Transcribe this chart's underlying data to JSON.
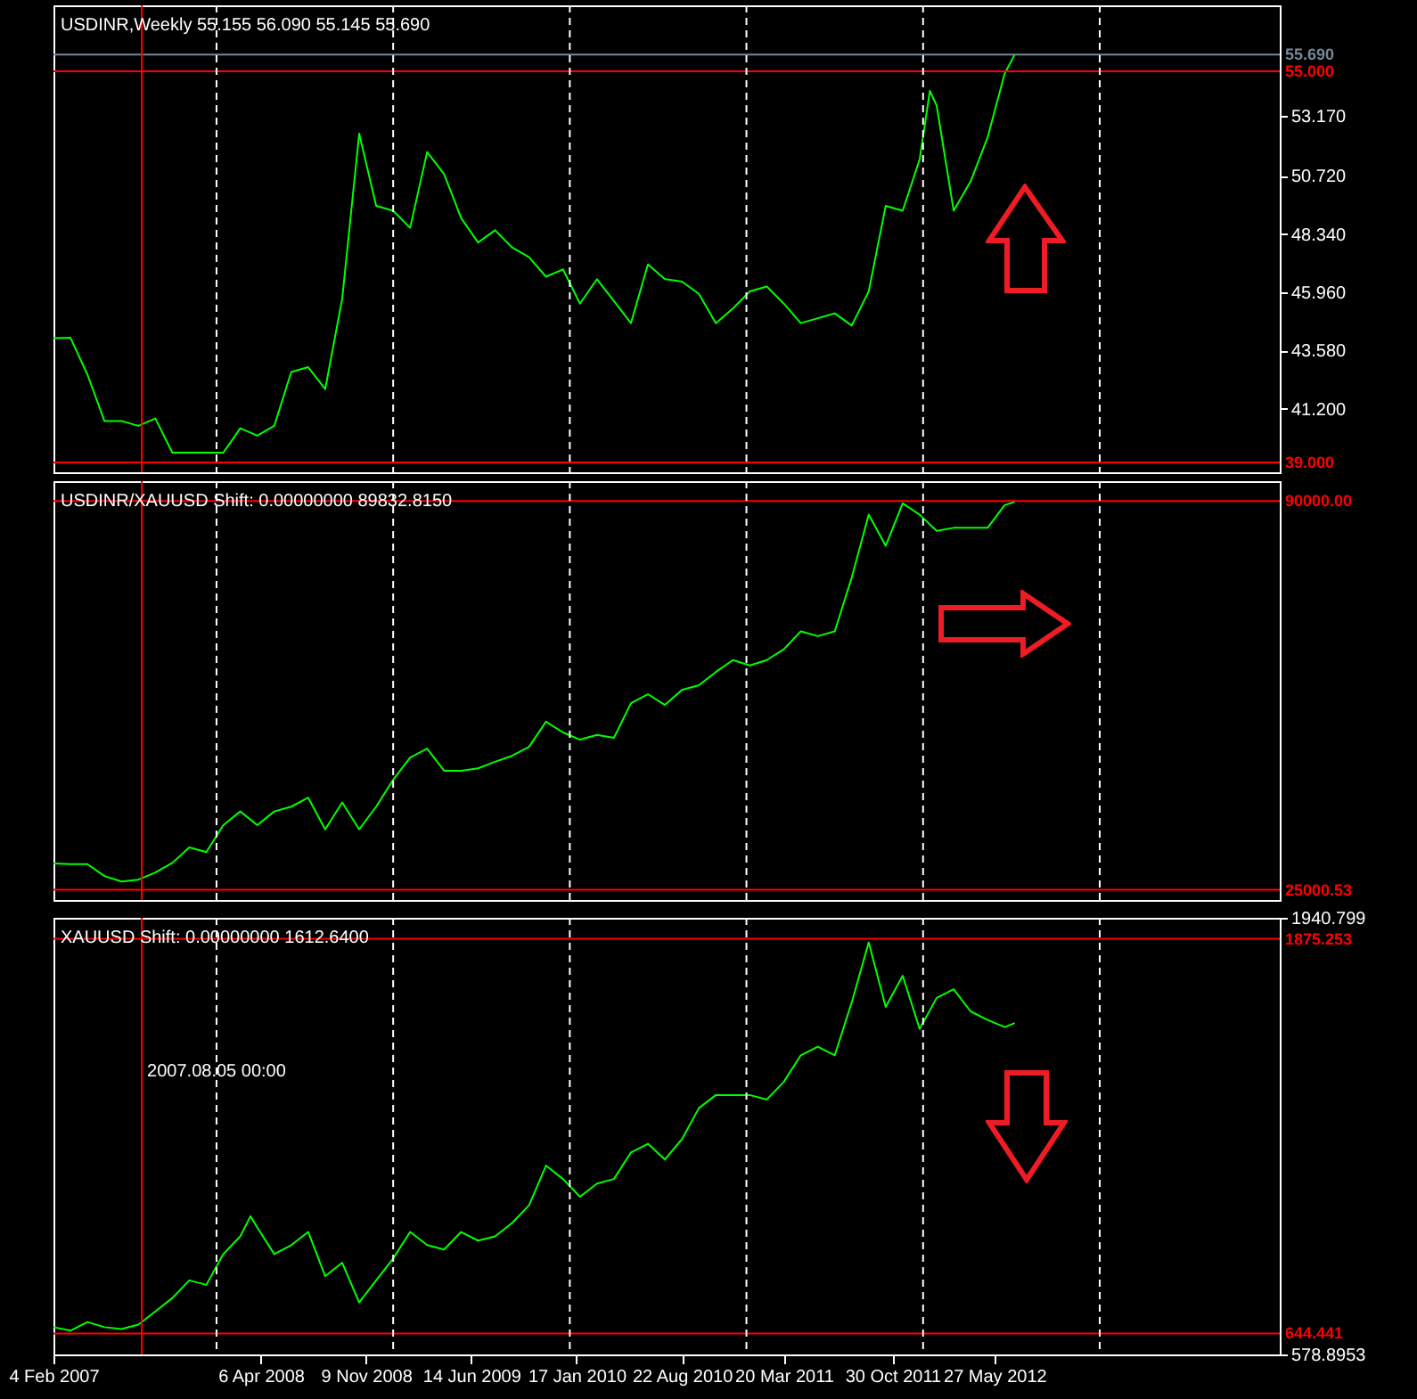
{
  "chart_data": [
    {
      "type": "line",
      "title": "USDINR,Weekly  55.155 56.090 55.145 55.690",
      "tick_labels": "y",
      "grid": false,
      "line_style": "solid",
      "xlim": [
        "2007-02-04",
        "2014-01-05"
      ],
      "ylim": [
        38.6,
        57.7
      ],
      "yticks": [
        {
          "value": 41.2,
          "label": "41.200"
        },
        {
          "value": 43.58,
          "label": "43.580"
        },
        {
          "value": 45.96,
          "label": "45.960"
        },
        {
          "value": 48.34,
          "label": "48.340"
        },
        {
          "value": 50.72,
          "label": "50.720"
        },
        {
          "value": 53.17,
          "label": "53.170"
        }
      ],
      "x": [
        "2007-02-04",
        "2007-03-11",
        "2007-04-15",
        "2007-05-20",
        "2007-06-24",
        "2007-07-29",
        "2007-09-02",
        "2007-10-07",
        "2007-11-11",
        "2007-12-16",
        "2008-01-20",
        "2008-02-24",
        "2008-03-30",
        "2008-05-04",
        "2008-06-08",
        "2008-07-13",
        "2008-08-17",
        "2008-09-21",
        "2008-10-26",
        "2008-11-30",
        "2009-01-04",
        "2009-02-08",
        "2009-03-15",
        "2009-04-19",
        "2009-05-24",
        "2009-06-28",
        "2009-08-02",
        "2009-09-06",
        "2009-10-11",
        "2009-11-15",
        "2009-12-20",
        "2010-01-24",
        "2010-02-28",
        "2010-04-04",
        "2010-05-09",
        "2010-06-13",
        "2010-07-18",
        "2010-08-22",
        "2010-09-26",
        "2010-10-31",
        "2010-12-05",
        "2011-01-09",
        "2011-02-13",
        "2011-03-20",
        "2011-04-24",
        "2011-05-29",
        "2011-07-03",
        "2011-08-07",
        "2011-09-11",
        "2011-10-16",
        "2011-11-20",
        "2011-12-25",
        "2012-01-15",
        "2012-01-29",
        "2012-03-04",
        "2012-04-08",
        "2012-05-13",
        "2012-06-17",
        "2012-07-08"
      ],
      "series": [
        {
          "color": "#00ff00",
          "values": [
            44.09,
            44.1,
            42.6,
            40.7,
            40.7,
            40.5,
            40.8,
            39.4,
            39.4,
            39.4,
            39.4,
            40.4,
            40.1,
            40.5,
            42.7,
            42.9,
            42.0,
            45.7,
            52.45,
            49.5,
            49.3,
            48.6,
            51.7,
            50.8,
            49.0,
            48.0,
            48.5,
            47.8,
            47.4,
            46.6,
            46.9,
            45.5,
            46.5,
            45.6,
            44.7,
            47.1,
            46.5,
            46.4,
            45.9,
            44.7,
            45.3,
            46.0,
            46.2,
            45.5,
            44.7,
            44.9,
            45.1,
            44.6,
            46.0,
            49.5,
            49.3,
            51.4,
            54.2,
            53.6,
            49.3,
            50.5,
            52.3,
            54.9,
            55.69
          ]
        }
      ],
      "ref_lines": [
        {
          "axis": "y",
          "value": 55.69,
          "label": "55.690",
          "color": "#778899"
        },
        {
          "axis": "y",
          "value": 55.0,
          "label": "55.000",
          "color": "#ff0000"
        },
        {
          "axis": "y",
          "value": 39.0,
          "label": "39.000",
          "color": "#ff0000"
        },
        {
          "axis": "x",
          "value": "2007-08-05",
          "color": "#ff0000"
        },
        {
          "axis": "x",
          "value": "2008-01-06",
          "color": "#ffffff",
          "line_style": "dashed"
        },
        {
          "axis": "x",
          "value": "2009-01-04",
          "color": "#ffffff",
          "line_style": "dashed"
        },
        {
          "axis": "x",
          "value": "2010-01-03",
          "color": "#ffffff",
          "line_style": "dashed"
        },
        {
          "axis": "x",
          "value": "2011-01-02",
          "color": "#ffffff",
          "line_style": "dashed"
        },
        {
          "axis": "x",
          "value": "2012-01-01",
          "color": "#ffffff",
          "line_style": "dashed"
        },
        {
          "axis": "x",
          "value": "2012-12-30",
          "color": "#ffffff",
          "line_style": "dashed"
        }
      ]
    },
    {
      "type": "line",
      "title": "USDINR/XAUUSD Shift: 0.00000000 89832.8150",
      "tick_labels": "y",
      "grid": false,
      "line_style": "solid",
      "xlim": [
        "2007-02-04",
        "2014-01-05"
      ],
      "ylim": [
        23300,
        93300
      ],
      "x": [
        "2007-02-04",
        "2007-03-11",
        "2007-04-15",
        "2007-05-20",
        "2007-06-24",
        "2007-07-29",
        "2007-09-02",
        "2007-10-07",
        "2007-11-11",
        "2007-12-16",
        "2008-01-20",
        "2008-02-24",
        "2008-03-30",
        "2008-05-04",
        "2008-06-08",
        "2008-07-13",
        "2008-08-17",
        "2008-09-21",
        "2008-10-26",
        "2008-11-30",
        "2009-01-04",
        "2009-02-08",
        "2009-03-15",
        "2009-04-19",
        "2009-05-24",
        "2009-06-28",
        "2009-08-02",
        "2009-09-06",
        "2009-10-11",
        "2009-11-15",
        "2009-12-20",
        "2010-01-24",
        "2010-02-28",
        "2010-04-04",
        "2010-05-09",
        "2010-06-13",
        "2010-07-18",
        "2010-08-22",
        "2010-09-26",
        "2010-10-31",
        "2010-12-05",
        "2011-01-09",
        "2011-02-13",
        "2011-03-20",
        "2011-04-24",
        "2011-05-29",
        "2011-07-03",
        "2011-08-07",
        "2011-09-11",
        "2011-10-16",
        "2011-11-20",
        "2011-12-25",
        "2012-01-29",
        "2012-03-04",
        "2012-04-08",
        "2012-05-13",
        "2012-06-17",
        "2012-07-08"
      ],
      "series": [
        {
          "color": "#00ff00",
          "values": [
            29400,
            29300,
            29300,
            27300,
            26400,
            26700,
            27900,
            29500,
            32100,
            31300,
            35800,
            38100,
            35800,
            38100,
            38900,
            40400,
            35100,
            39600,
            35100,
            38900,
            43400,
            47100,
            48600,
            44900,
            44900,
            45300,
            46400,
            47400,
            48900,
            53100,
            51300,
            50100,
            50900,
            50400,
            56200,
            57700,
            55900,
            58400,
            59200,
            61400,
            63400,
            62500,
            63400,
            65200,
            68200,
            67400,
            68200,
            77200,
            87700,
            82500,
            89600,
            87700,
            85000,
            85500,
            85500,
            85500,
            89300,
            89833
          ]
        }
      ],
      "ref_lines": [
        {
          "axis": "y",
          "value": 90000,
          "label": "90000.00",
          "color": "#ff0000"
        },
        {
          "axis": "y",
          "value": 25000.53,
          "label": "25000.53",
          "color": "#ff0000"
        },
        {
          "axis": "x",
          "value": "2007-08-05",
          "color": "#ff0000"
        },
        {
          "axis": "x",
          "value": "2008-01-06",
          "color": "#ffffff",
          "line_style": "dashed"
        },
        {
          "axis": "x",
          "value": "2009-01-04",
          "color": "#ffffff",
          "line_style": "dashed"
        },
        {
          "axis": "x",
          "value": "2010-01-03",
          "color": "#ffffff",
          "line_style": "dashed"
        },
        {
          "axis": "x",
          "value": "2011-01-02",
          "color": "#ffffff",
          "line_style": "dashed"
        },
        {
          "axis": "x",
          "value": "2012-01-01",
          "color": "#ffffff",
          "line_style": "dashed"
        },
        {
          "axis": "x",
          "value": "2012-12-30",
          "color": "#ffffff",
          "line_style": "dashed"
        }
      ]
    },
    {
      "type": "line",
      "title": "XAUUSD Shift: 0.00000000 1612.6400",
      "grid": false,
      "line_style": "solid",
      "xlim": [
        "2007-02-04",
        "2014-01-05"
      ],
      "ylim": [
        578.8953,
        1940.799
      ],
      "xticks": [
        {
          "value": "2007-02-04",
          "label": "4 Feb 2007"
        },
        {
          "value": "2008-04-06",
          "label": "6 Apr 2008"
        },
        {
          "value": "2008-11-09",
          "label": "9 Nov 2008"
        },
        {
          "value": "2009-06-14",
          "label": "14 Jun 2009"
        },
        {
          "value": "2010-01-17",
          "label": "17 Jan 2010"
        },
        {
          "value": "2010-08-22",
          "label": "22 Aug 2010"
        },
        {
          "value": "2011-03-20",
          "label": "20 Mar 2011"
        },
        {
          "value": "2011-10-30",
          "label": "30 Oct 2011"
        },
        {
          "value": "2012-05-27",
          "label": "27 May 2012"
        }
      ],
      "yticks": [
        {
          "value": 578.8953,
          "label": "578.8953"
        },
        {
          "value": 1940.799,
          "label": "1940.799"
        }
      ],
      "x": [
        "2007-02-04",
        "2007-03-11",
        "2007-04-15",
        "2007-05-20",
        "2007-06-24",
        "2007-07-29",
        "2007-09-02",
        "2007-10-07",
        "2007-11-11",
        "2007-12-16",
        "2008-01-20",
        "2008-02-24",
        "2008-03-16",
        "2008-03-30",
        "2008-05-04",
        "2008-06-08",
        "2008-07-13",
        "2008-08-17",
        "2008-09-21",
        "2008-10-26",
        "2008-11-30",
        "2009-01-04",
        "2009-02-08",
        "2009-03-15",
        "2009-04-19",
        "2009-05-24",
        "2009-06-28",
        "2009-08-02",
        "2009-09-06",
        "2009-10-11",
        "2009-11-15",
        "2009-12-20",
        "2010-01-24",
        "2010-02-28",
        "2010-04-04",
        "2010-05-09",
        "2010-06-13",
        "2010-07-18",
        "2010-08-22",
        "2010-09-26",
        "2010-10-31",
        "2010-12-05",
        "2011-01-09",
        "2011-02-13",
        "2011-03-20",
        "2011-04-24",
        "2011-05-29",
        "2011-07-03",
        "2011-08-07",
        "2011-09-11",
        "2011-10-16",
        "2011-11-20",
        "2011-12-25",
        "2012-01-29",
        "2012-03-04",
        "2012-04-08",
        "2012-05-13",
        "2012-06-17",
        "2012-07-08"
      ],
      "series": [
        {
          "color": "#00ff00",
          "values": [
            664,
            653,
            680,
            664,
            658,
            672,
            713,
            755,
            810,
            796,
            892,
            947,
            1010,
            975,
            892,
            920,
            961,
            823,
            865,
            741,
            810,
            878,
            961,
            920,
            906,
            961,
            934,
            947,
            989,
            1044,
            1168,
            1126,
            1071,
            1112,
            1126,
            1209,
            1236,
            1187,
            1250,
            1347,
            1388,
            1388,
            1388,
            1374,
            1429,
            1512,
            1539,
            1512,
            1677,
            1864,
            1663,
            1760,
            1594,
            1691,
            1718,
            1649,
            1622,
            1600,
            1612.64
          ]
        }
      ],
      "ref_lines": [
        {
          "axis": "y",
          "value": 1875.253,
          "label": "1875.253",
          "color": "#ff0000"
        },
        {
          "axis": "y",
          "value": 644.441,
          "label": "644.441",
          "color": "#ff0000"
        },
        {
          "axis": "x",
          "value": "2007-08-05",
          "label": "2007.08.05 00:00",
          "color": "#ff0000"
        },
        {
          "axis": "x",
          "value": "2008-01-06",
          "color": "#ffffff",
          "line_style": "dashed"
        },
        {
          "axis": "x",
          "value": "2009-01-04",
          "color": "#ffffff",
          "line_style": "dashed"
        },
        {
          "axis": "x",
          "value": "2010-01-03",
          "color": "#ffffff",
          "line_style": "dashed"
        },
        {
          "axis": "x",
          "value": "2011-01-02",
          "color": "#ffffff",
          "line_style": "dashed"
        },
        {
          "axis": "x",
          "value": "2012-01-01",
          "color": "#ffffff",
          "line_style": "dashed"
        },
        {
          "axis": "x",
          "value": "2012-12-30",
          "color": "#ffffff",
          "line_style": "dashed"
        }
      ]
    }
  ]
}
